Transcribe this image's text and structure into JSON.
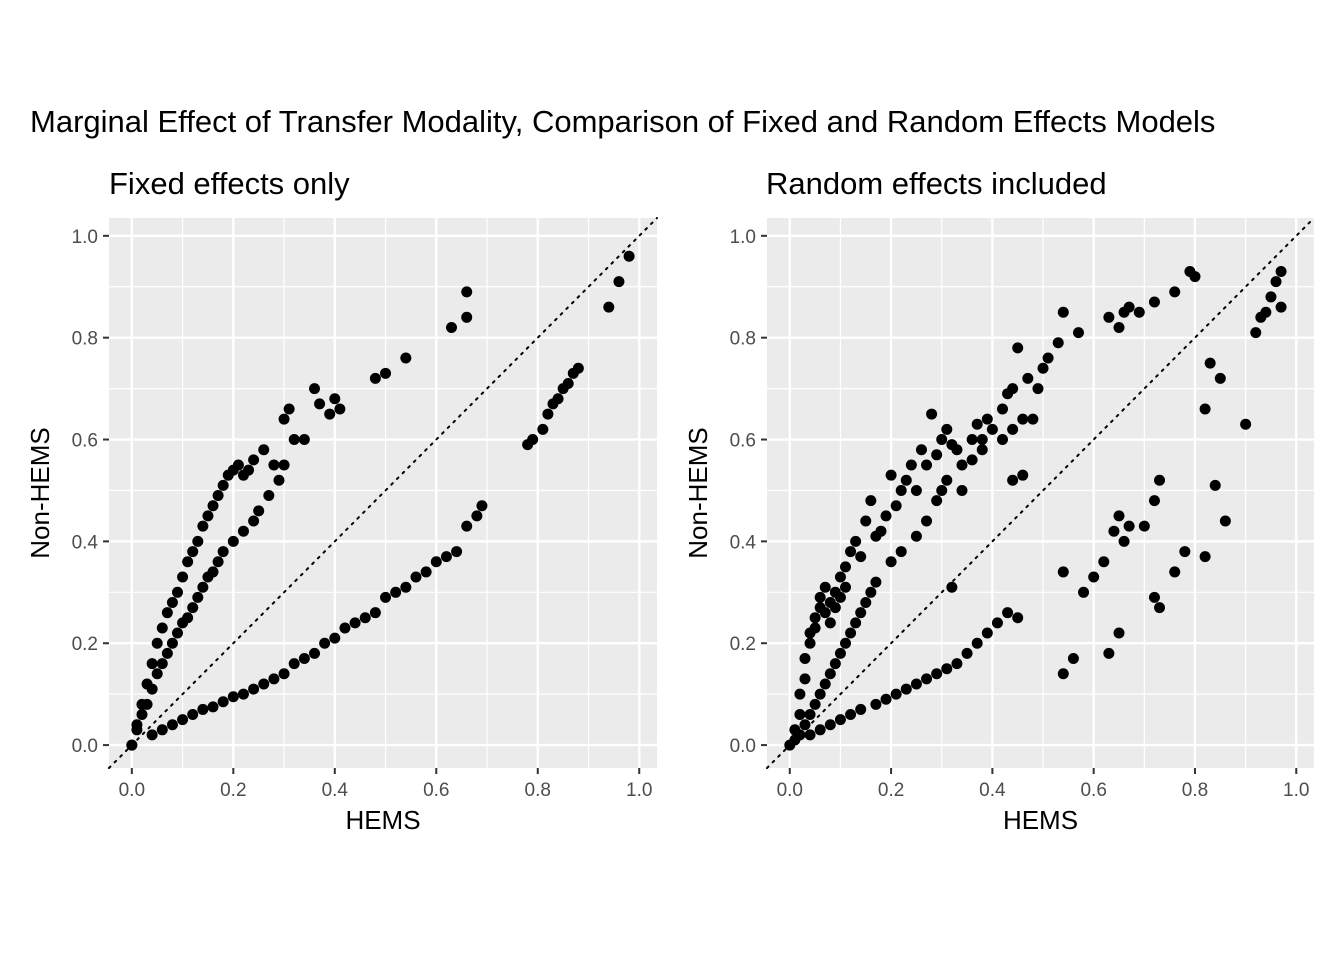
{
  "title": "Marginal Effect of Transfer Modality, Comparison of Fixed and Random Effects Models",
  "chart_data": [
    {
      "type": "scatter",
      "title": "Fixed effects only",
      "xlabel": "HEMS",
      "ylabel": "Non-HEMS",
      "xlim": [
        -0.045,
        1.035
      ],
      "ylim": [
        -0.045,
        1.035
      ],
      "xticks": [
        "0.0",
        "0.2",
        "0.4",
        "0.6",
        "0.8",
        "1.0"
      ],
      "yticks": [
        "0.0",
        "0.2",
        "0.4",
        "0.6",
        "0.8",
        "1.0"
      ],
      "grid": true,
      "reference_line": "y = x (dotted)",
      "point_color": "#000000",
      "x": [
        0.0,
        0.01,
        0.02,
        0.03,
        0.04,
        0.05,
        0.06,
        0.07,
        0.08,
        0.09,
        0.1,
        0.11,
        0.12,
        0.13,
        0.14,
        0.15,
        0.16,
        0.17,
        0.18,
        0.19,
        0.2,
        0.21,
        0.22,
        0.23,
        0.24,
        0.26,
        0.28,
        0.3,
        0.31,
        0.32,
        0.34,
        0.36,
        0.37,
        0.39,
        0.4,
        0.41,
        0.48,
        0.5,
        0.54,
        0.63,
        0.66,
        0.66,
        0.0,
        0.01,
        0.02,
        0.03,
        0.04,
        0.05,
        0.06,
        0.07,
        0.08,
        0.09,
        0.1,
        0.11,
        0.12,
        0.13,
        0.14,
        0.15,
        0.16,
        0.17,
        0.18,
        0.2,
        0.22,
        0.24,
        0.25,
        0.27,
        0.29,
        0.3,
        0.04,
        0.06,
        0.08,
        0.1,
        0.12,
        0.14,
        0.16,
        0.18,
        0.2,
        0.22,
        0.24,
        0.26,
        0.28,
        0.3,
        0.32,
        0.34,
        0.36,
        0.38,
        0.4,
        0.42,
        0.44,
        0.46,
        0.48,
        0.5,
        0.52,
        0.54,
        0.56,
        0.58,
        0.6,
        0.62,
        0.64,
        0.66,
        0.68,
        0.69,
        0.78,
        0.79,
        0.81,
        0.82,
        0.83,
        0.84,
        0.85,
        0.86,
        0.87,
        0.88,
        0.94,
        0.96,
        0.98
      ],
      "y": [
        0.0,
        0.04,
        0.08,
        0.12,
        0.16,
        0.2,
        0.23,
        0.26,
        0.28,
        0.3,
        0.33,
        0.36,
        0.38,
        0.4,
        0.43,
        0.45,
        0.47,
        0.49,
        0.51,
        0.53,
        0.54,
        0.55,
        0.53,
        0.54,
        0.56,
        0.58,
        0.55,
        0.64,
        0.66,
        0.6,
        0.6,
        0.7,
        0.67,
        0.65,
        0.68,
        0.66,
        0.72,
        0.73,
        0.76,
        0.82,
        0.84,
        0.89,
        0.0,
        0.03,
        0.06,
        0.08,
        0.11,
        0.14,
        0.16,
        0.18,
        0.2,
        0.22,
        0.24,
        0.25,
        0.27,
        0.29,
        0.31,
        0.33,
        0.34,
        0.36,
        0.38,
        0.4,
        0.42,
        0.44,
        0.46,
        0.49,
        0.52,
        0.55,
        0.02,
        0.03,
        0.04,
        0.05,
        0.06,
        0.07,
        0.075,
        0.085,
        0.095,
        0.1,
        0.11,
        0.12,
        0.13,
        0.14,
        0.16,
        0.17,
        0.18,
        0.2,
        0.21,
        0.23,
        0.24,
        0.25,
        0.26,
        0.29,
        0.3,
        0.31,
        0.33,
        0.34,
        0.36,
        0.37,
        0.38,
        0.43,
        0.45,
        0.47,
        0.59,
        0.6,
        0.62,
        0.65,
        0.67,
        0.68,
        0.7,
        0.71,
        0.73,
        0.74,
        0.86,
        0.91,
        0.96
      ]
    },
    {
      "type": "scatter",
      "title": "Random effects included",
      "xlabel": "HEMS",
      "ylabel": "Non-HEMS",
      "xlim": [
        -0.045,
        1.035
      ],
      "ylim": [
        -0.045,
        1.035
      ],
      "xticks": [
        "0.0",
        "0.2",
        "0.4",
        "0.6",
        "0.8",
        "1.0"
      ],
      "yticks": [
        "0.0",
        "0.2",
        "0.4",
        "0.6",
        "0.8",
        "1.0"
      ],
      "grid": true,
      "reference_line": "y = x (dotted)",
      "point_color": "#000000",
      "x": [
        0.0,
        0.01,
        0.02,
        0.02,
        0.03,
        0.03,
        0.04,
        0.04,
        0.05,
        0.05,
        0.06,
        0.06,
        0.07,
        0.07,
        0.08,
        0.08,
        0.09,
        0.09,
        0.1,
        0.1,
        0.11,
        0.11,
        0.12,
        0.13,
        0.14,
        0.15,
        0.16,
        0.17,
        0.18,
        0.19,
        0.2,
        0.21,
        0.22,
        0.23,
        0.24,
        0.25,
        0.26,
        0.27,
        0.28,
        0.29,
        0.3,
        0.31,
        0.32,
        0.33,
        0.34,
        0.36,
        0.37,
        0.38,
        0.39,
        0.4,
        0.42,
        0.43,
        0.44,
        0.45,
        0.47,
        0.49,
        0.5,
        0.51,
        0.53,
        0.54,
        0.57,
        0.63,
        0.65,
        0.66,
        0.67,
        0.69,
        0.72,
        0.76,
        0.79,
        0.8,
        0.01,
        0.02,
        0.03,
        0.04,
        0.05,
        0.06,
        0.07,
        0.08,
        0.09,
        0.1,
        0.11,
        0.12,
        0.13,
        0.14,
        0.15,
        0.16,
        0.17,
        0.2,
        0.22,
        0.25,
        0.27,
        0.29,
        0.3,
        0.31,
        0.34,
        0.36,
        0.38,
        0.42,
        0.44,
        0.46,
        0.48,
        0.04,
        0.06,
        0.08,
        0.1,
        0.12,
        0.14,
        0.17,
        0.19,
        0.21,
        0.23,
        0.25,
        0.27,
        0.29,
        0.31,
        0.33,
        0.35,
        0.37,
        0.39,
        0.41,
        0.43,
        0.45,
        0.54,
        0.58,
        0.6,
        0.62,
        0.64,
        0.65,
        0.66,
        0.67,
        0.7,
        0.72,
        0.73,
        0.76,
        0.82,
        0.83,
        0.84,
        0.86,
        0.9,
        0.32,
        0.44,
        0.46,
        0.54,
        0.56,
        0.63,
        0.65,
        0.72,
        0.73,
        0.78,
        0.82,
        0.85,
        0.92,
        0.93,
        0.94,
        0.95,
        0.96,
        0.97,
        0.97
      ],
      "y": [
        0.0,
        0.03,
        0.06,
        0.1,
        0.13,
        0.17,
        0.2,
        0.22,
        0.25,
        0.23,
        0.27,
        0.29,
        0.31,
        0.26,
        0.28,
        0.24,
        0.3,
        0.27,
        0.33,
        0.29,
        0.35,
        0.31,
        0.38,
        0.4,
        0.37,
        0.44,
        0.48,
        0.41,
        0.42,
        0.45,
        0.53,
        0.47,
        0.5,
        0.52,
        0.55,
        0.5,
        0.58,
        0.55,
        0.65,
        0.57,
        0.6,
        0.62,
        0.59,
        0.58,
        0.55,
        0.6,
        0.63,
        0.6,
        0.64,
        0.62,
        0.66,
        0.69,
        0.7,
        0.78,
        0.72,
        0.7,
        0.74,
        0.76,
        0.79,
        0.85,
        0.81,
        0.84,
        0.82,
        0.85,
        0.86,
        0.85,
        0.87,
        0.89,
        0.93,
        0.92,
        0.01,
        0.02,
        0.04,
        0.06,
        0.08,
        0.1,
        0.12,
        0.14,
        0.16,
        0.18,
        0.2,
        0.22,
        0.24,
        0.26,
        0.28,
        0.3,
        0.32,
        0.36,
        0.38,
        0.41,
        0.44,
        0.48,
        0.5,
        0.52,
        0.5,
        0.56,
        0.58,
        0.6,
        0.62,
        0.64,
        0.64,
        0.02,
        0.03,
        0.04,
        0.05,
        0.06,
        0.07,
        0.08,
        0.09,
        0.1,
        0.11,
        0.12,
        0.13,
        0.14,
        0.15,
        0.16,
        0.18,
        0.2,
        0.22,
        0.24,
        0.26,
        0.25,
        0.14,
        0.3,
        0.33,
        0.36,
        0.42,
        0.45,
        0.4,
        0.43,
        0.43,
        0.48,
        0.52,
        0.34,
        0.37,
        0.75,
        0.51,
        0.44,
        0.63,
        0.31,
        0.52,
        0.53,
        0.34,
        0.17,
        0.18,
        0.22,
        0.29,
        0.27,
        0.38,
        0.66,
        0.72,
        0.81,
        0.84,
        0.85,
        0.88,
        0.91,
        0.93,
        0.86
      ]
    }
  ]
}
